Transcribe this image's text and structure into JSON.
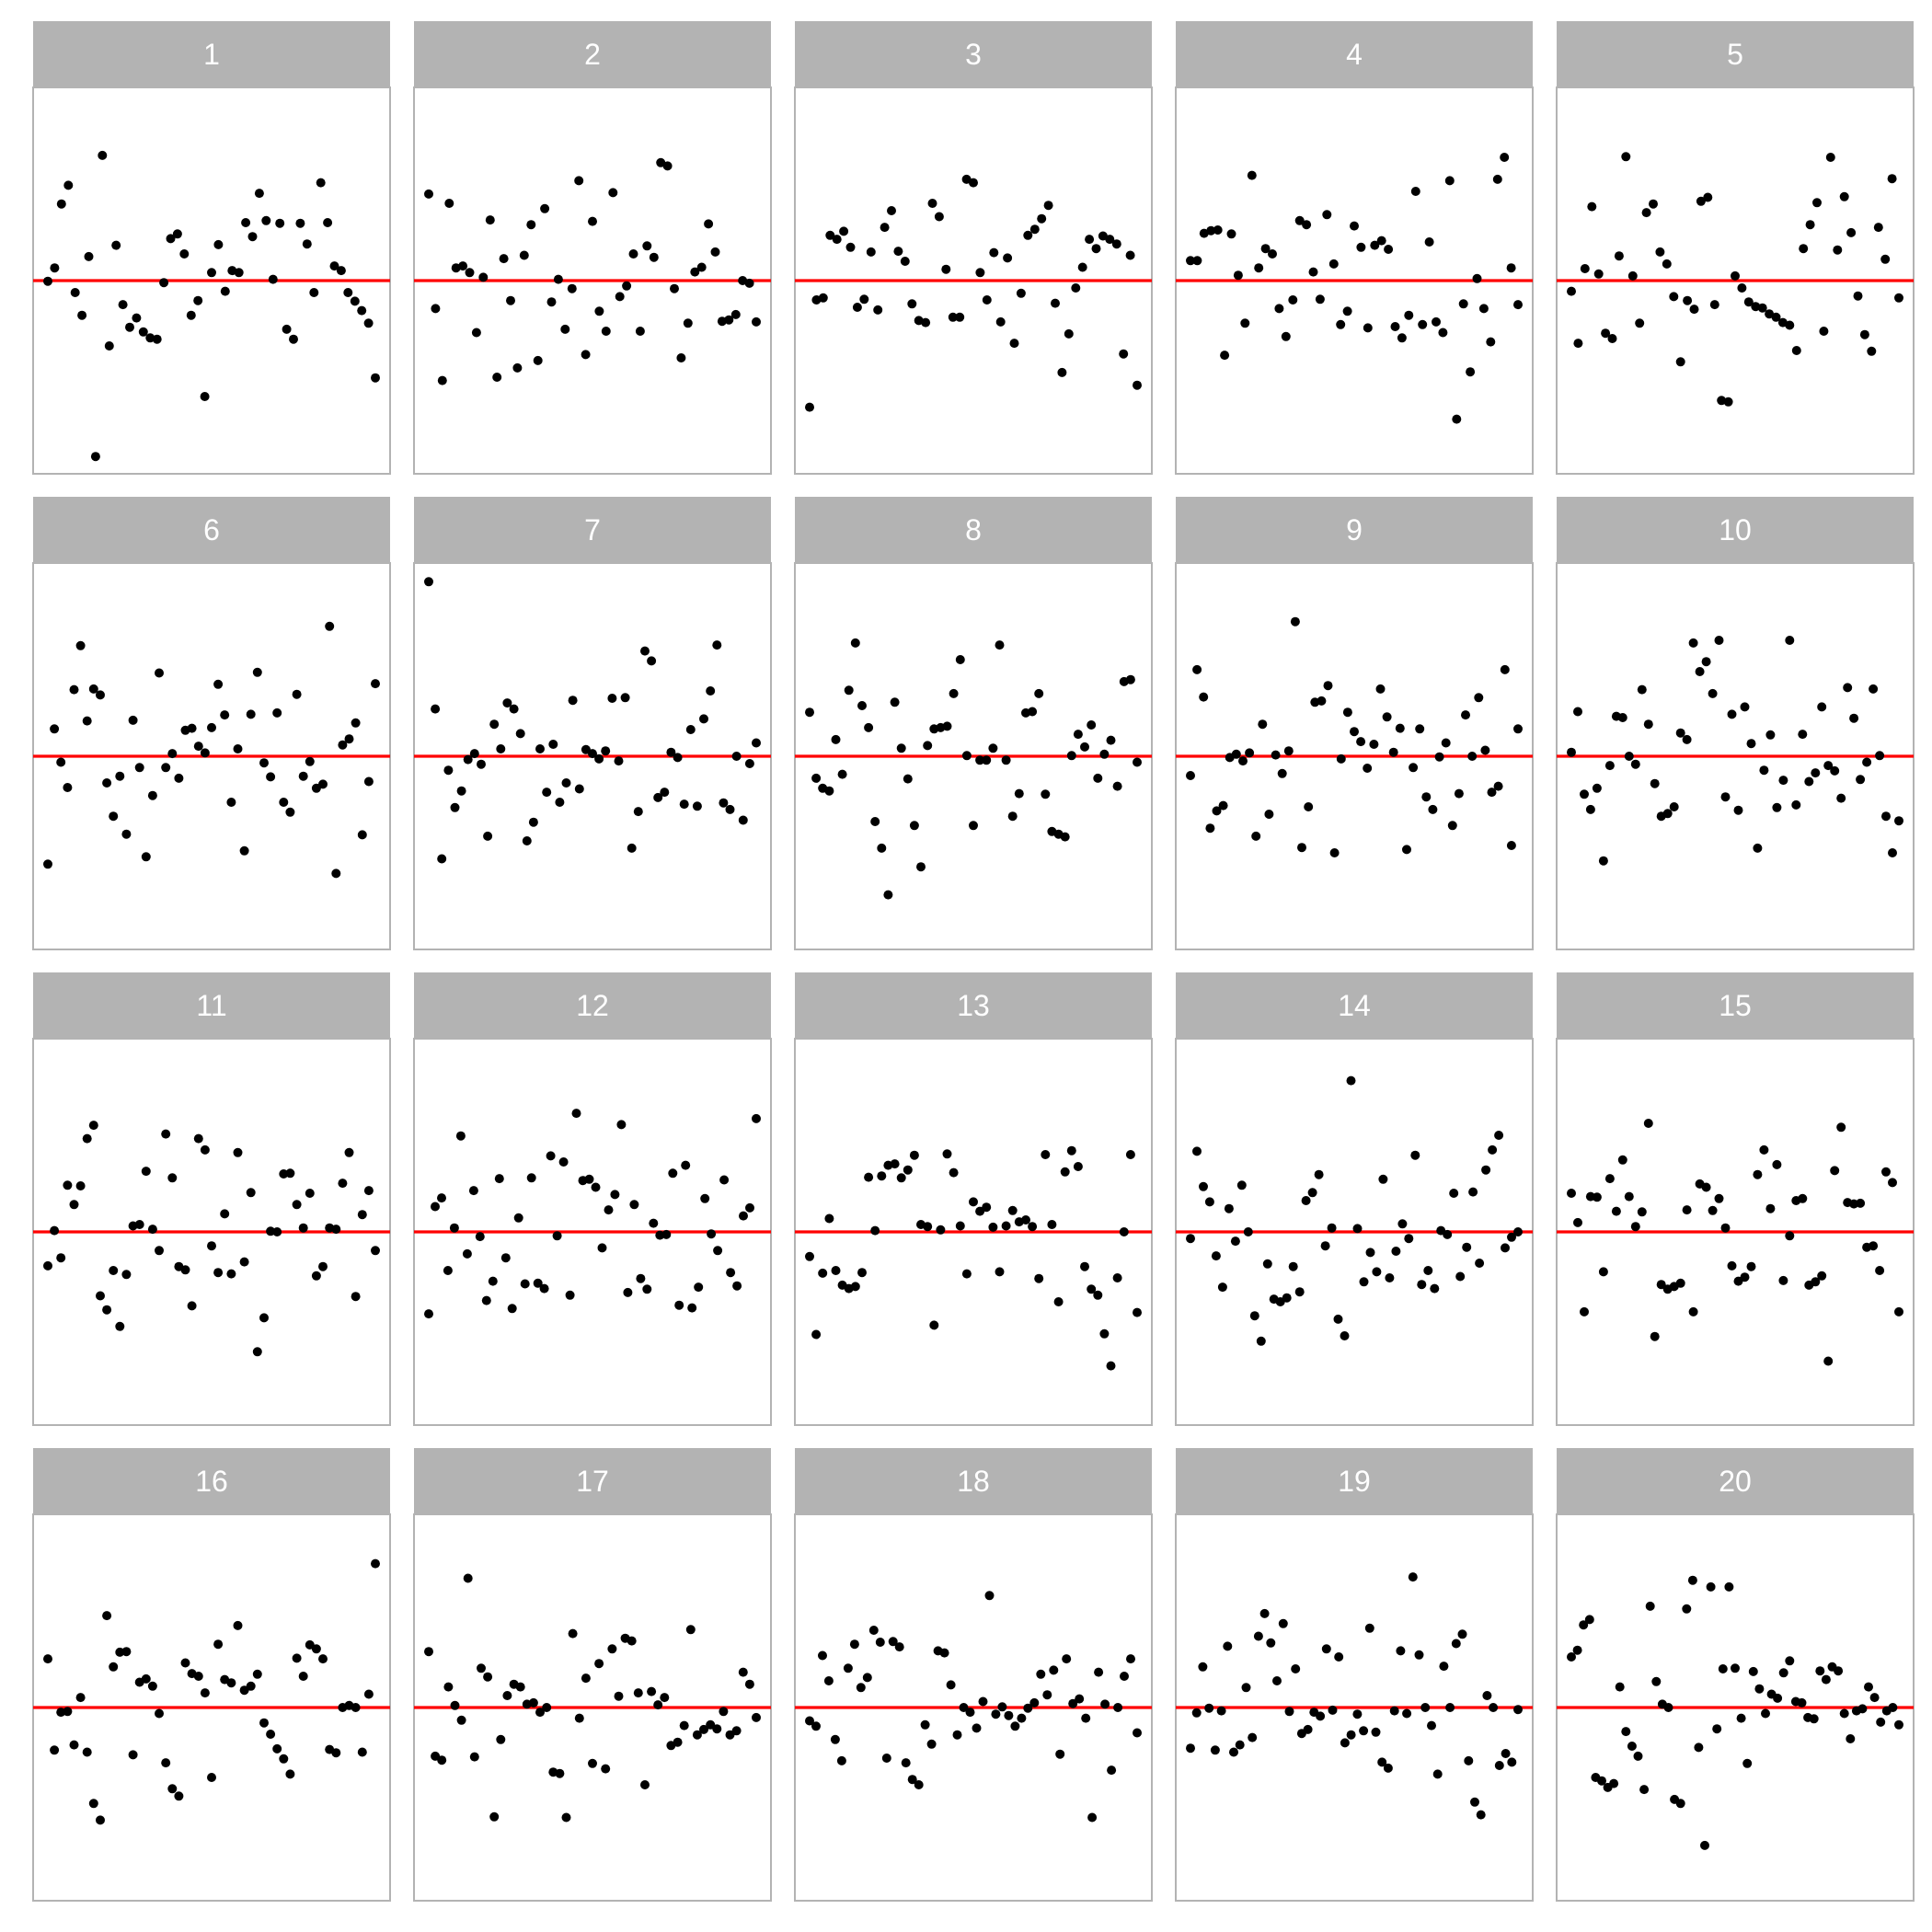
{
  "chart_data": {
    "type": "scatter",
    "title": "",
    "xlabel": "",
    "ylabel": "",
    "layout": {
      "rows": 4,
      "cols": 5
    },
    "xlim": [
      0,
      1
    ],
    "ylim": [
      -2.9,
      2.9
    ],
    "reference_line": {
      "y": 0,
      "color": "#ff0000"
    },
    "point_color": "#000000",
    "panels": [
      {
        "label": "1",
        "y": [
          -0.01,
          0.19,
          1.15,
          1.43,
          -0.18,
          -0.52,
          0.36,
          -2.64,
          1.88,
          -0.98,
          0.53,
          -0.36,
          -0.7,
          -0.56,
          -0.77,
          -0.86,
          -0.88,
          -0.03,
          0.63,
          0.7,
          0.4,
          -0.52,
          -0.3,
          -1.74,
          0.12,
          0.54,
          -0.16,
          0.15,
          0.12,
          0.87,
          0.66,
          1.31,
          0.9,
          0.02,
          0.86,
          -0.73,
          -0.88,
          0.86,
          0.55,
          -0.18,
          1.47,
          0.87,
          0.22,
          0.15,
          -0.18,
          -0.31,
          -0.45,
          -0.64,
          -1.46
        ]
      },
      {
        "label": "2",
        "y": [
          1.3,
          -0.42,
          -1.5,
          1.16,
          0.19,
          0.22,
          0.12,
          -0.78,
          0.05,
          0.91,
          -1.45,
          0.33,
          -0.3,
          -1.31,
          0.38,
          0.84,
          -1.2,
          1.08,
          -0.32,
          0.02,
          -0.73,
          -0.12,
          1.5,
          -1.11,
          0.89,
          -0.46,
          -0.76,
          1.32,
          -0.24,
          -0.08,
          0.4,
          -0.76,
          0.52,
          0.35,
          1.77,
          1.72,
          -0.12,
          -1.16,
          -0.64,
          0.13,
          0.2,
          0.85,
          0.43,
          -0.61,
          -0.59,
          -0.51,
          0.0,
          -0.04,
          -0.62
        ]
      },
      {
        "label": "3",
        "y": [
          -1.9,
          -0.29,
          -0.26,
          0.68,
          0.62,
          0.74,
          0.5,
          -0.4,
          -0.28,
          0.43,
          -0.44,
          0.8,
          1.05,
          0.44,
          0.29,
          -0.35,
          -0.6,
          -0.63,
          1.16,
          0.96,
          0.17,
          -0.55,
          -0.55,
          1.52,
          1.47,
          0.12,
          -0.29,
          0.42,
          -0.62,
          0.34,
          -0.94,
          -0.19,
          0.68,
          0.77,
          0.93,
          1.13,
          -0.34,
          -1.38,
          -0.8,
          -0.11,
          0.2,
          0.62,
          0.48,
          0.67,
          0.62,
          0.55,
          -1.1,
          0.38,
          -1.57
        ]
      },
      {
        "label": "4",
        "y": [
          0.3,
          0.3,
          0.71,
          0.75,
          0.76,
          -1.12,
          0.7,
          0.08,
          -0.64,
          1.58,
          0.19,
          0.48,
          0.4,
          -0.42,
          -0.84,
          -0.29,
          0.9,
          0.84,
          0.13,
          -0.28,
          0.99,
          0.25,
          -0.66,
          -0.46,
          0.82,
          0.5,
          -0.71,
          0.53,
          0.6,
          0.47,
          -0.69,
          -0.86,
          -0.52,
          1.34,
          -0.66,
          0.58,
          -0.62,
          -0.78,
          1.5,
          -2.08,
          -0.35,
          -1.37,
          0.03,
          -0.42,
          -0.92,
          1.52,
          1.85,
          0.19,
          -0.36
        ]
      },
      {
        "label": "5",
        "y": [
          -0.16,
          -0.94,
          0.18,
          1.11,
          0.1,
          -0.79,
          -0.87,
          0.37,
          1.86,
          0.07,
          -0.64,
          1.02,
          1.15,
          0.43,
          0.25,
          -0.24,
          -1.22,
          -0.3,
          -0.43,
          1.19,
          1.25,
          -0.36,
          -1.8,
          -1.82,
          0.07,
          -0.11,
          -0.32,
          -0.39,
          -0.41,
          -0.5,
          -0.55,
          -0.63,
          -0.67,
          -1.05,
          0.48,
          0.84,
          1.17,
          -0.76,
          1.85,
          0.46,
          1.26,
          0.72,
          -0.23,
          -0.81,
          -1.06,
          0.8,
          0.32,
          1.53,
          -0.26
        ]
      },
      {
        "label": "6",
        "y": [
          -1.62,
          0.41,
          -0.09,
          -0.47,
          1.0,
          1.66,
          0.53,
          1.01,
          0.92,
          -0.4,
          -0.9,
          -0.3,
          -1.17,
          0.54,
          -0.17,
          -1.51,
          -0.59,
          1.25,
          -0.17,
          0.04,
          -0.33,
          0.39,
          0.42,
          0.15,
          0.05,
          0.43,
          1.08,
          0.62,
          -0.69,
          0.11,
          -1.42,
          0.63,
          1.26,
          -0.1,
          -0.31,
          0.65,
          -0.69,
          -0.84,
          0.93,
          -0.3,
          -0.08,
          -0.48,
          -0.42,
          1.95,
          -1.76,
          0.17,
          0.26,
          0.5,
          -1.18,
          -0.38,
          1.09
        ]
      },
      {
        "label": "7",
        "y": [
          2.62,
          0.71,
          -1.54,
          -0.21,
          -0.77,
          -0.52,
          -0.05,
          0.04,
          -0.12,
          -1.2,
          0.48,
          0.11,
          0.8,
          0.71,
          0.34,
          -1.27,
          -0.99,
          0.11,
          -0.54,
          0.18,
          -0.69,
          -0.4,
          0.84,
          -0.49,
          0.1,
          0.04,
          -0.04,
          0.08,
          0.87,
          -0.07,
          0.88,
          -1.38,
          -0.83,
          1.58,
          1.43,
          -0.62,
          -0.54,
          0.06,
          -0.02,
          -0.72,
          0.4,
          -0.75,
          0.56,
          0.98,
          1.67,
          -0.7,
          -0.8,
          0.0,
          -0.96,
          -0.11,
          0.2
        ]
      },
      {
        "label": "8",
        "y": [
          0.66,
          -0.33,
          -0.48,
          -0.52,
          0.25,
          -0.27,
          0.99,
          1.7,
          0.76,
          0.43,
          -0.98,
          -1.38,
          -2.08,
          0.81,
          0.12,
          -0.34,
          -1.04,
          -1.66,
          0.16,
          0.41,
          0.43,
          0.45,
          0.94,
          1.45,
          0.01,
          -1.04,
          -0.06,
          -0.06,
          0.12,
          1.67,
          -0.06,
          -0.9,
          -0.56,
          0.65,
          0.67,
          0.94,
          -0.57,
          -1.13,
          -1.17,
          -1.21,
          0.01,
          0.33,
          0.14,
          0.47,
          -0.33,
          0.03,
          0.24,
          -0.45,
          1.12,
          1.15,
          -0.09
        ]
      },
      {
        "label": "9",
        "y": [
          -0.29,
          1.3,
          0.89,
          -1.08,
          -0.82,
          -0.74,
          -0.02,
          0.03,
          -0.07,
          0.05,
          -1.2,
          0.48,
          -0.87,
          0.02,
          -0.26,
          0.08,
          2.02,
          -1.37,
          -0.76,
          0.81,
          0.83,
          1.06,
          -1.45,
          -0.04,
          0.66,
          0.37,
          0.22,
          -0.18,
          0.18,
          1.01,
          0.59,
          0.06,
          0.42,
          -1.4,
          -0.17,
          0.41,
          -0.61,
          -0.8,
          -0.01,
          0.2,
          -1.04,
          -0.56,
          0.62,
          0.0,
          0.88,
          0.09,
          -0.54,
          -0.45,
          1.3,
          -1.34,
          0.41
        ]
      },
      {
        "label": "10",
        "y": [
          0.06,
          0.67,
          -0.57,
          -0.8,
          -0.48,
          -1.57,
          -0.14,
          0.6,
          0.58,
          0.0,
          -0.12,
          1.0,
          0.48,
          -0.41,
          -0.9,
          -0.86,
          -0.76,
          0.35,
          0.25,
          1.7,
          1.27,
          1.42,
          0.94,
          1.74,
          -0.61,
          0.63,
          -0.81,
          0.74,
          0.19,
          -1.38,
          -0.21,
          0.32,
          -0.77,
          -0.36,
          1.74,
          -0.73,
          0.33,
          -0.38,
          -0.25,
          0.74,
          -0.14,
          -0.22,
          -0.63,
          1.03,
          0.57,
          -0.35,
          -0.09,
          1.01,
          0.01,
          -0.9,
          -1.45,
          -0.97
        ]
      },
      {
        "label": "11",
        "y": [
          -0.51,
          0.02,
          -0.39,
          0.7,
          0.41,
          0.69,
          1.4,
          1.6,
          -0.96,
          -1.17,
          -0.58,
          -1.42,
          -0.64,
          0.09,
          0.11,
          0.91,
          0.04,
          -0.28,
          1.47,
          0.81,
          -0.52,
          -0.57,
          -1.11,
          1.4,
          1.23,
          -0.21,
          -0.61,
          0.27,
          -0.63,
          1.19,
          -0.45,
          0.59,
          -1.8,
          -1.29,
          0.01,
          0.0,
          0.87,
          0.88,
          0.41,
          0.06,
          0.58,
          -0.66,
          -0.52,
          0.06,
          0.04,
          0.73,
          1.19,
          -0.97,
          0.26,
          0.62,
          -0.28
        ]
      },
      {
        "label": "12",
        "y": [
          -1.23,
          0.38,
          0.51,
          -0.58,
          0.06,
          1.44,
          -0.33,
          0.62,
          -0.07,
          -1.03,
          -0.74,
          0.8,
          -0.39,
          -1.15,
          0.21,
          -0.78,
          0.81,
          -0.77,
          -0.85,
          1.14,
          -0.06,
          1.05,
          -0.95,
          1.78,
          0.77,
          0.79,
          0.67,
          -0.24,
          0.33,
          0.56,
          1.61,
          -0.91,
          0.41,
          -0.7,
          -0.86,
          0.13,
          -0.05,
          -0.04,
          0.88,
          -1.1,
          1.0,
          -1.14,
          -0.83,
          0.5,
          -0.03,
          -0.28,
          0.78,
          -0.61,
          -0.81,
          0.24,
          0.36,
          1.7
        ]
      },
      {
        "label": "13",
        "y": [
          -0.37,
          -1.54,
          -0.62,
          0.2,
          -0.58,
          -0.8,
          -0.85,
          -0.82,
          -0.61,
          0.82,
          0.02,
          0.84,
          1.0,
          1.02,
          0.81,
          0.93,
          1.15,
          0.11,
          0.08,
          -1.4,
          0.03,
          1.17,
          0.89,
          0.09,
          -0.63,
          0.45,
          0.31,
          0.37,
          0.07,
          -0.6,
          0.09,
          0.32,
          0.15,
          0.18,
          0.08,
          -0.7,
          1.16,
          0.11,
          -1.05,
          0.9,
          1.22,
          0.98,
          -0.52,
          -0.86,
          -0.95,
          -1.53,
          -2.01,
          -0.69,
          0.0,
          1.16,
          -1.21
        ]
      },
      {
        "label": "14",
        "y": [
          -0.1,
          1.21,
          0.68,
          0.45,
          -0.36,
          -0.83,
          0.35,
          -0.14,
          0.7,
          0.0,
          -1.26,
          -1.64,
          -0.48,
          -1.01,
          -1.05,
          -0.99,
          -0.52,
          -0.9,
          0.47,
          0.59,
          0.86,
          -0.21,
          0.06,
          -1.31,
          -1.56,
          2.27,
          0.05,
          -0.75,
          -0.31,
          -0.6,
          0.79,
          -0.69,
          -0.29,
          0.12,
          -0.1,
          1.15,
          -0.79,
          -0.58,
          -0.85,
          0.02,
          -0.04,
          0.58,
          -0.67,
          -0.23,
          0.6,
          -0.47,
          0.93,
          1.23,
          1.45,
          -0.24,
          -0.08,
          0.0
        ]
      },
      {
        "label": "15",
        "y": [
          0.58,
          0.14,
          -1.2,
          0.53,
          0.52,
          -0.6,
          0.8,
          0.31,
          1.08,
          0.53,
          0.08,
          0.3,
          1.63,
          -1.57,
          -0.79,
          -0.86,
          -0.82,
          -0.77,
          0.33,
          -1.2,
          0.72,
          0.67,
          0.32,
          0.5,
          0.06,
          -0.51,
          -0.74,
          -0.68,
          -0.52,
          0.86,
          1.23,
          0.35,
          1.01,
          -0.73,
          -0.06,
          0.47,
          0.5,
          -0.8,
          -0.75,
          -0.66,
          -1.94,
          0.92,
          1.57,
          0.44,
          0.42,
          0.43,
          -0.23,
          -0.21,
          -0.58,
          0.9,
          0.74,
          -1.2
        ]
      },
      {
        "label": "16",
        "y": [
          0.73,
          -0.64,
          -0.07,
          -0.06,
          -0.56,
          0.15,
          -0.67,
          -1.44,
          -1.69,
          1.38,
          0.61,
          0.83,
          0.84,
          -0.71,
          0.38,
          0.43,
          0.32,
          -0.09,
          -0.83,
          -1.22,
          -1.33,
          0.67,
          0.51,
          0.47,
          0.22,
          -1.05,
          0.95,
          0.42,
          0.37,
          1.23,
          0.26,
          0.32,
          0.5,
          -0.23,
          -0.4,
          -0.62,
          -0.77,
          -1.0,
          0.74,
          0.47,
          0.94,
          0.88,
          0.73,
          -0.63,
          -0.68,
          0.0,
          0.03,
          0.0,
          -0.67,
          0.2,
          2.16
        ]
      },
      {
        "label": "17",
        "y": [
          0.84,
          -0.73,
          -0.79,
          0.31,
          0.03,
          -0.19,
          1.94,
          -0.74,
          0.59,
          0.46,
          -1.64,
          -0.48,
          0.18,
          0.35,
          0.31,
          0.05,
          0.07,
          -0.07,
          0.0,
          -0.97,
          -0.99,
          -1.65,
          1.11,
          -0.16,
          0.44,
          -0.84,
          0.66,
          -0.92,
          0.88,
          0.17,
          1.04,
          1.0,
          0.22,
          -1.16,
          0.24,
          0.04,
          0.15,
          -0.57,
          -0.52,
          -0.27,
          1.17,
          -0.41,
          -0.33,
          -0.26,
          -0.32,
          -0.06,
          -0.41,
          -0.35,
          0.53,
          0.35,
          -0.15
        ]
      },
      {
        "label": "18",
        "y": [
          -0.2,
          -0.28,
          0.78,
          0.4,
          -0.48,
          -0.8,
          0.59,
          0.95,
          0.3,
          0.45,
          1.16,
          0.98,
          -0.76,
          0.99,
          0.91,
          -0.83,
          -1.08,
          -1.16,
          -0.26,
          -0.55,
          0.85,
          0.82,
          0.34,
          -0.41,
          0.0,
          -0.07,
          -0.31,
          0.09,
          1.68,
          -0.1,
          0.01,
          -0.12,
          -0.28,
          -0.16,
          -0.01,
          0.07,
          0.5,
          0.19,
          0.56,
          -0.7,
          0.73,
          0.06,
          0.13,
          -0.16,
          -1.65,
          0.53,
          0.05,
          -0.94,
          0.0,
          0.47,
          0.73,
          -0.38
        ]
      },
      {
        "label": "19",
        "y": [
          -0.61,
          -0.08,
          0.61,
          -0.01,
          -0.64,
          -0.05,
          0.92,
          -0.67,
          -0.56,
          0.3,
          -0.45,
          1.07,
          1.41,
          0.97,
          0.4,
          1.26,
          -0.06,
          0.58,
          -0.39,
          -0.33,
          -0.07,
          -0.13,
          0.88,
          -0.04,
          0.76,
          -0.53,
          -0.41,
          -0.1,
          -0.35,
          1.19,
          -0.37,
          -0.82,
          -0.91,
          -0.05,
          0.85,
          -0.09,
          1.96,
          0.79,
          0.0,
          -0.27,
          -1.0,
          0.62,
          0.0,
          0.96,
          1.1,
          -0.8,
          -1.42,
          -1.61,
          0.18,
          0.0,
          -0.87,
          -0.69,
          -0.82,
          -0.03
        ]
      },
      {
        "label": "20",
        "y": [
          0.76,
          0.86,
          1.24,
          1.32,
          -1.05,
          -1.1,
          -1.2,
          -1.14,
          0.31,
          -0.36,
          -0.58,
          -0.73,
          -1.23,
          1.52,
          0.39,
          0.05,
          0.0,
          -1.38,
          -1.44,
          1.48,
          1.91,
          -0.6,
          -2.07,
          1.81,
          -0.32,
          0.58,
          1.81,
          0.59,
          -0.16,
          -0.84,
          0.54,
          0.28,
          -0.09,
          0.2,
          0.14,
          0.52,
          0.7,
          0.09,
          0.07,
          -0.15,
          -0.17,
          0.55,
          0.42,
          0.61,
          0.55,
          -0.09,
          -0.47,
          -0.05,
          -0.02,
          0.31,
          0.15,
          -0.22,
          -0.05,
          0.0,
          -0.26
        ]
      }
    ]
  }
}
